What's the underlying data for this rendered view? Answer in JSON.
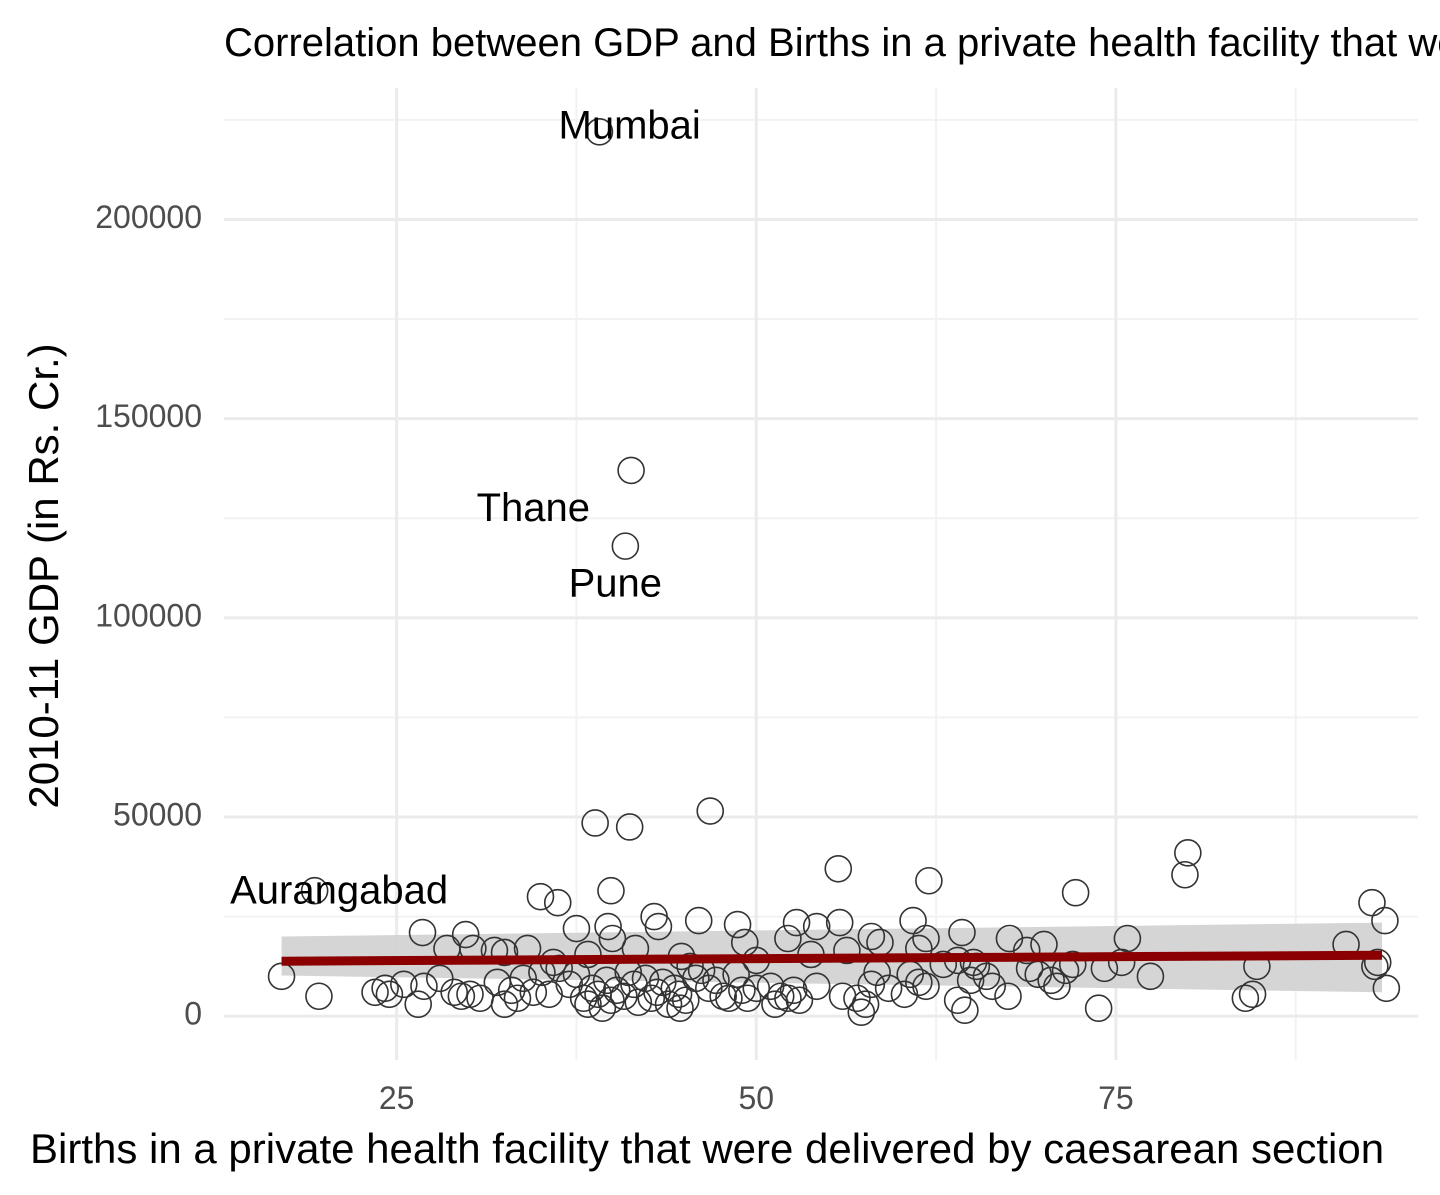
{
  "chart_data": {
    "type": "scatter",
    "title": "Correlation between GDP and Births in a private health facility that were delivered by caesarean section",
    "xlabel": "Births in a private health facility that were delivered by caesarean section",
    "ylabel": "2010-11 GDP (in Rs. Cr.)",
    "xlim": [
      13,
      96
    ],
    "ylim": [
      -11000,
      233000
    ],
    "x_ticks": [
      25,
      50,
      75
    ],
    "y_ticks": [
      0,
      50000,
      100000,
      150000,
      200000
    ],
    "x_tick_labels": [
      "25",
      "50",
      "75"
    ],
    "y_tick_labels": [
      "0",
      "50000",
      "100000",
      "150000",
      "200000"
    ],
    "grid": true,
    "legend": "none",
    "colors": {
      "points": "#333333",
      "trend": "#8b0000",
      "band": "#d3d3d3"
    },
    "trend": {
      "x": [
        17.0,
        93.5
      ],
      "y": [
        13800,
        15300
      ],
      "ci_low": [
        10200,
        6000
      ],
      "ci_high": [
        20000,
        23500
      ]
    },
    "labels": [
      {
        "text": "Mumbai",
        "x": 41.2,
        "y": 223000
      },
      {
        "text": "Thane",
        "x": 34.5,
        "y": 127000
      },
      {
        "text": "Pune",
        "x": 40.2,
        "y": 108000
      },
      {
        "text": "Aurangabad",
        "x": 21.0,
        "y": 31000
      }
    ],
    "points": [
      [
        39.1,
        222000
      ],
      [
        41.3,
        137000
      ],
      [
        40.9,
        118000
      ],
      [
        38.8,
        48500
      ],
      [
        41.2,
        47500
      ],
      [
        46.8,
        51500
      ],
      [
        19.3,
        31500
      ],
      [
        39.9,
        31500
      ],
      [
        35.0,
        30000
      ],
      [
        36.2,
        28500
      ],
      [
        55.7,
        37000
      ],
      [
        62.0,
        34000
      ],
      [
        72.2,
        31000
      ],
      [
        80.0,
        41000
      ],
      [
        79.8,
        35500
      ],
      [
        92.8,
        28500
      ],
      [
        93.7,
        24000
      ],
      [
        60.9,
        24000
      ],
      [
        64.3,
        21000
      ],
      [
        52.8,
        23500
      ],
      [
        55.8,
        23500
      ],
      [
        54.2,
        22500
      ],
      [
        48.7,
        23000
      ],
      [
        46.0,
        24000
      ],
      [
        42.9,
        25000
      ],
      [
        43.2,
        22500
      ],
      [
        39.7,
        22500
      ],
      [
        37.5,
        22000
      ],
      [
        26.8,
        21000
      ],
      [
        29.8,
        20500
      ],
      [
        40.0,
        19500
      ],
      [
        49.2,
        18500
      ],
      [
        52.2,
        19500
      ],
      [
        58.0,
        20000
      ],
      [
        58.6,
        18500
      ],
      [
        61.8,
        19500
      ],
      [
        67.6,
        19500
      ],
      [
        70.0,
        18000
      ],
      [
        75.8,
        19500
      ],
      [
        91.0,
        18000
      ],
      [
        28.5,
        17000
      ],
      [
        30.3,
        17000
      ],
      [
        31.8,
        16500
      ],
      [
        32.5,
        16000
      ],
      [
        34.1,
        17000
      ],
      [
        38.3,
        15500
      ],
      [
        41.6,
        17000
      ],
      [
        44.8,
        15000
      ],
      [
        50.0,
        14000
      ],
      [
        53.8,
        15500
      ],
      [
        56.3,
        16500
      ],
      [
        61.3,
        17000
      ],
      [
        64.0,
        14000
      ],
      [
        65.1,
        13500
      ],
      [
        68.8,
        16500
      ],
      [
        72.0,
        13000
      ],
      [
        75.4,
        13500
      ],
      [
        84.8,
        12500
      ],
      [
        93.0,
        12500
      ],
      [
        24.2,
        7000
      ],
      [
        17.0,
        10000
      ],
      [
        19.6,
        5000
      ],
      [
        23.5,
        6000
      ],
      [
        24.5,
        5500
      ],
      [
        25.5,
        8000
      ],
      [
        26.5,
        3000
      ],
      [
        26.9,
        7500
      ],
      [
        28.0,
        9500
      ],
      [
        29.0,
        6000
      ],
      [
        29.5,
        5000
      ],
      [
        30.1,
        5500
      ],
      [
        30.8,
        4500
      ],
      [
        32.0,
        8500
      ],
      [
        32.5,
        3000
      ],
      [
        33.0,
        6500
      ],
      [
        33.4,
        4500
      ],
      [
        33.8,
        9500
      ],
      [
        34.5,
        6000
      ],
      [
        35.1,
        11000
      ],
      [
        35.6,
        5500
      ],
      [
        35.9,
        13500
      ],
      [
        36.3,
        12000
      ],
      [
        37.0,
        8000
      ],
      [
        37.5,
        10500
      ],
      [
        38.0,
        4500
      ],
      [
        38.3,
        3000
      ],
      [
        38.6,
        7000
      ],
      [
        39.0,
        5500
      ],
      [
        39.3,
        2000
      ],
      [
        39.6,
        9000
      ],
      [
        39.9,
        4000
      ],
      [
        40.3,
        6500
      ],
      [
        40.8,
        5000
      ],
      [
        41.1,
        11000
      ],
      [
        41.5,
        8000
      ],
      [
        41.8,
        3500
      ],
      [
        42.3,
        9500
      ],
      [
        42.7,
        4500
      ],
      [
        43.1,
        6000
      ],
      [
        43.5,
        8500
      ],
      [
        43.9,
        3000
      ],
      [
        44.3,
        7000
      ],
      [
        44.6,
        5500
      ],
      [
        45.1,
        4000
      ],
      [
        45.4,
        12500
      ],
      [
        45.8,
        9500
      ],
      [
        46.2,
        11500
      ],
      [
        46.7,
        7000
      ],
      [
        47.2,
        9000
      ],
      [
        47.7,
        5000
      ],
      [
        48.1,
        4500
      ],
      [
        48.6,
        10500
      ],
      [
        49.0,
        6500
      ],
      [
        49.4,
        4500
      ],
      [
        50.0,
        7000
      ],
      [
        51.0,
        7500
      ],
      [
        51.3,
        3000
      ],
      [
        51.7,
        5000
      ],
      [
        52.2,
        4500
      ],
      [
        52.6,
        6500
      ],
      [
        53.0,
        4000
      ],
      [
        54.2,
        7500
      ],
      [
        56.0,
        5000
      ],
      [
        57.0,
        4500
      ],
      [
        57.6,
        3000
      ],
      [
        58.0,
        8000
      ],
      [
        58.4,
        11000
      ],
      [
        59.2,
        7000
      ],
      [
        60.3,
        5500
      ],
      [
        60.7,
        10500
      ],
      [
        61.3,
        8500
      ],
      [
        61.8,
        7500
      ],
      [
        63.0,
        13000
      ],
      [
        64.0,
        4000
      ],
      [
        64.5,
        1500
      ],
      [
        64.9,
        9000
      ],
      [
        65.3,
        12500
      ],
      [
        66.0,
        10000
      ],
      [
        66.4,
        7500
      ],
      [
        67.5,
        5000
      ],
      [
        69.0,
        12000
      ],
      [
        69.6,
        10500
      ],
      [
        70.5,
        9000
      ],
      [
        70.9,
        7500
      ],
      [
        71.5,
        11500
      ],
      [
        73.8,
        2000
      ],
      [
        74.2,
        12000
      ],
      [
        77.4,
        10000
      ],
      [
        84.0,
        4500
      ],
      [
        84.5,
        5500
      ],
      [
        93.2,
        13500
      ],
      [
        93.8,
        7000
      ],
      [
        57.3,
        1000
      ],
      [
        44.7,
        2000
      ]
    ]
  }
}
